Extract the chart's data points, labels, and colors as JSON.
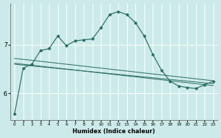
{
  "xlabel": "Humidex (Indice chaleur)",
  "x_ticks": [
    0,
    1,
    2,
    3,
    4,
    5,
    6,
    7,
    8,
    9,
    10,
    11,
    12,
    13,
    14,
    15,
    16,
    17,
    18,
    19,
    20,
    21,
    22,
    23
  ],
  "xlim": [
    -0.5,
    23.5
  ],
  "ylim": [
    5.45,
    7.85
  ],
  "yticks": [
    6,
    7
  ],
  "bg_color": "#cceaea",
  "grid_color": "#ffffff",
  "line_color": "#2a6e62",
  "curve1_x": [
    0,
    1,
    2,
    3,
    4,
    5,
    6,
    7,
    8,
    9,
    10,
    11,
    12,
    13,
    14,
    15,
    16,
    17,
    18,
    19,
    20,
    21,
    22,
    23
  ],
  "curve1_y": [
    5.58,
    6.52,
    6.6,
    6.88,
    6.92,
    7.18,
    6.98,
    7.08,
    7.1,
    7.12,
    7.35,
    7.62,
    7.68,
    7.62,
    7.45,
    7.18,
    6.8,
    6.48,
    6.25,
    6.15,
    6.12,
    6.1,
    6.18,
    6.25
  ],
  "curve2_x": [
    0,
    1,
    2,
    3,
    4,
    5,
    6,
    7,
    8,
    9,
    10,
    11,
    12,
    13,
    14,
    15,
    16,
    17,
    18,
    19,
    20,
    21,
    22,
    23
  ],
  "curve2_y": [
    6.72,
    6.7,
    6.68,
    6.66,
    6.64,
    6.62,
    6.6,
    6.58,
    6.56,
    6.54,
    6.52,
    6.5,
    6.48,
    6.46,
    6.44,
    6.42,
    6.4,
    6.38,
    6.36,
    6.34,
    6.32,
    6.3,
    6.28,
    6.26
  ],
  "curve3_x": [
    0,
    23
  ],
  "curve3_y": [
    6.6,
    6.2
  ],
  "curve4_x": [
    0,
    1,
    2,
    3,
    4,
    5,
    6,
    7,
    8,
    9,
    10,
    11,
    12,
    13,
    14,
    15,
    16,
    17,
    18,
    19,
    20,
    21,
    22,
    23
  ],
  "curve4_y": [
    6.62,
    6.6,
    6.58,
    6.56,
    6.54,
    6.52,
    6.5,
    6.48,
    6.46,
    6.44,
    6.42,
    6.4,
    6.38,
    6.36,
    6.34,
    6.32,
    6.3,
    6.28,
    6.26,
    6.24,
    6.22,
    6.2,
    6.18,
    6.16
  ]
}
